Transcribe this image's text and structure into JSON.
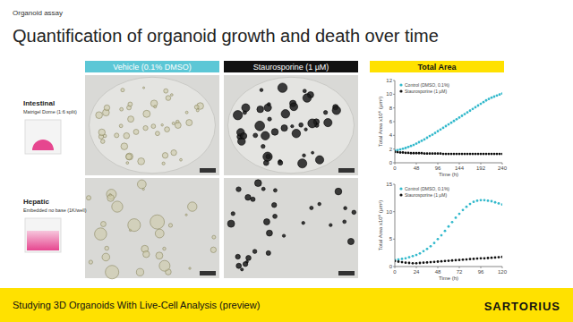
{
  "slide": {
    "kicker": "Organoid assay",
    "title": "Quantification of organoid growth and death over time",
    "headers": [
      "Vehicle (0.1% DMSO)",
      "Staurosporine (1 µM)",
      "Total Area"
    ],
    "rows": [
      {
        "name": "Intestinal",
        "detail": "Matrigel Dome (1:6 split)"
      },
      {
        "name": "Hepatic",
        "detail": "Embedded no base (1K/well)"
      }
    ],
    "footer": "Studying 3D Organoids With Live-Cell Analysis (preview)",
    "logo": "SARTORIUS"
  },
  "chart_data": [
    {
      "type": "scatter",
      "marker": "circle",
      "legend": "top-left",
      "grid": false,
      "x_label": "Time (h)",
      "y_label": "Total Area x10⁶ (µm²)",
      "xlim": [
        0,
        240
      ],
      "xticks": [
        0,
        48,
        96,
        144,
        192,
        240
      ],
      "ylim": [
        0,
        12
      ],
      "yticks": [
        0,
        2,
        4,
        6,
        8,
        10,
        12
      ],
      "x": [
        0,
        6,
        12,
        18,
        24,
        30,
        36,
        42,
        48,
        54,
        60,
        66,
        72,
        78,
        84,
        90,
        96,
        102,
        108,
        114,
        120,
        126,
        132,
        138,
        144,
        150,
        156,
        162,
        168,
        174,
        180,
        186,
        192,
        198,
        204,
        210,
        216,
        222,
        228,
        234,
        240
      ],
      "series": [
        {
          "name": "Control (DMSO, 0.1%)",
          "color": "#33b9cc",
          "values": [
            1.8,
            1.85,
            1.95,
            2.05,
            2.15,
            2.3,
            2.45,
            2.6,
            2.8,
            3.0,
            3.2,
            3.4,
            3.65,
            3.9,
            4.1,
            4.35,
            4.6,
            4.85,
            5.1,
            5.35,
            5.6,
            5.85,
            6.1,
            6.35,
            6.6,
            6.85,
            7.1,
            7.35,
            7.6,
            7.85,
            8.1,
            8.35,
            8.6,
            8.85,
            9.1,
            9.3,
            9.5,
            9.65,
            9.8,
            9.95,
            10.1
          ]
        },
        {
          "name": "Staurosporine (1 µM)",
          "color": "#111111",
          "values": [
            1.6,
            1.55,
            1.5,
            1.5,
            1.45,
            1.45,
            1.4,
            1.4,
            1.4,
            1.4,
            1.4,
            1.35,
            1.35,
            1.35,
            1.35,
            1.35,
            1.35,
            1.35,
            1.3,
            1.3,
            1.3,
            1.3,
            1.3,
            1.3,
            1.3,
            1.3,
            1.3,
            1.3,
            1.3,
            1.3,
            1.3,
            1.3,
            1.3,
            1.3,
            1.3,
            1.3,
            1.3,
            1.3,
            1.3,
            1.3,
            1.3
          ]
        }
      ]
    },
    {
      "type": "scatter",
      "marker": "circle",
      "legend": "top-left",
      "grid": false,
      "x_label": "Time (h)",
      "y_label": "Total Area x10⁶ (µm²)",
      "xlim": [
        0,
        120
      ],
      "xticks": [
        0,
        24,
        48,
        72,
        96,
        120
      ],
      "ylim": [
        0,
        15
      ],
      "yticks": [
        0,
        5,
        10,
        15
      ],
      "x": [
        0,
        4,
        8,
        12,
        16,
        20,
        24,
        28,
        32,
        36,
        40,
        44,
        48,
        52,
        56,
        60,
        64,
        68,
        72,
        76,
        80,
        84,
        88,
        92,
        96,
        100,
        104,
        108,
        112,
        116,
        120
      ],
      "series": [
        {
          "name": "Control (DMSO, 0.1%)",
          "color": "#33b9cc",
          "values": [
            1.2,
            1.3,
            1.4,
            1.5,
            1.7,
            1.9,
            2.1,
            2.4,
            2.8,
            3.2,
            3.7,
            4.3,
            5.0,
            5.7,
            6.5,
            7.3,
            8.1,
            8.9,
            9.6,
            10.3,
            10.9,
            11.4,
            11.8,
            12.0,
            12.1,
            12.1,
            12.0,
            11.9,
            11.7,
            11.5,
            11.3
          ]
        },
        {
          "name": "Staurosporine (1 µM)",
          "color": "#111111",
          "values": [
            1.0,
            0.9,
            0.8,
            0.7,
            0.65,
            0.6,
            0.6,
            0.65,
            0.7,
            0.75,
            0.8,
            0.85,
            0.9,
            0.95,
            1.0,
            1.05,
            1.1,
            1.15,
            1.2,
            1.25,
            1.3,
            1.35,
            1.4,
            1.45,
            1.5,
            1.5,
            1.55,
            1.6,
            1.65,
            1.7,
            1.75
          ]
        }
      ]
    }
  ]
}
